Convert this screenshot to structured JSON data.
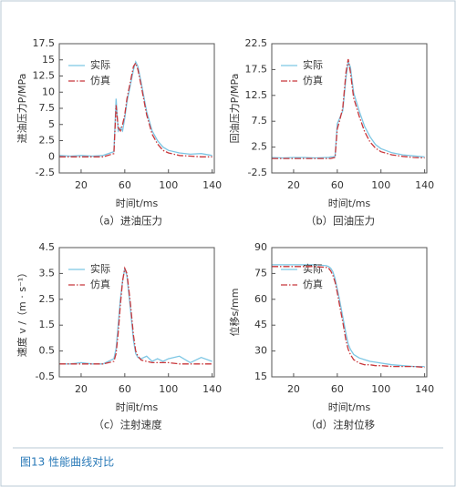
{
  "chart_data": [
    {
      "type": "line",
      "caption": "（a）进油压力",
      "x_label": "时间t/ms",
      "y_label": "进油压力P/MPa",
      "x": [
        0,
        10,
        20,
        30,
        40,
        50,
        52,
        54,
        56,
        58,
        60,
        62,
        65,
        68,
        70,
        72,
        75,
        80,
        85,
        90,
        95,
        100,
        110,
        120,
        130,
        140
      ],
      "xlim": [
        0,
        142
      ],
      "xticks": [
        20,
        60,
        100,
        140
      ],
      "ylim": [
        -2.5,
        17.5
      ],
      "yticks": [
        -2.5,
        0,
        2.5,
        5,
        7.5,
        10,
        12.5,
        15,
        17.5
      ],
      "series": [
        {
          "name": "实际",
          "color": "#7cc6e4",
          "dash": "solid",
          "values": [
            0.2,
            0.1,
            0.2,
            0.1,
            0.2,
            0.8,
            9,
            4,
            4.5,
            4,
            6,
            8.5,
            11,
            13.5,
            14.7,
            14,
            11.5,
            7,
            4,
            2.5,
            1.5,
            1,
            0.6,
            0.4,
            0.5,
            0.2
          ]
        },
        {
          "name": "仿真",
          "color": "#c8363a",
          "dash": "dash-dot",
          "values": [
            0,
            0,
            0,
            0,
            0,
            0.5,
            8,
            4.5,
            4,
            5,
            6.5,
            9,
            11.5,
            14,
            14.5,
            13.5,
            11,
            6.5,
            3.5,
            2,
            1,
            0.6,
            0.2,
            0.1,
            0,
            0
          ]
        }
      ]
    },
    {
      "type": "line",
      "caption": "（b）回油压力",
      "x_label": "时间t/ms",
      "y_label": "回油压力P/MPa",
      "x": [
        0,
        10,
        20,
        30,
        40,
        50,
        52,
        54,
        56,
        58,
        60,
        62,
        65,
        68,
        70,
        72,
        75,
        80,
        85,
        90,
        95,
        100,
        110,
        120,
        130,
        140
      ],
      "xlim": [
        0,
        142
      ],
      "xticks": [
        20,
        60,
        100,
        140
      ],
      "ylim": [
        -2.5,
        22.5
      ],
      "yticks": [
        -2.5,
        2.5,
        7.5,
        12.5,
        17.5,
        22.5
      ],
      "series": [
        {
          "name": "实际",
          "color": "#7cc6e4",
          "dash": "solid",
          "values": [
            0.5,
            0.4,
            0.5,
            0.5,
            0.4,
            0.5,
            0.5,
            0.6,
            0.6,
            0.7,
            7,
            8,
            9.5,
            16,
            19,
            18,
            13,
            9.5,
            6.5,
            4.5,
            3,
            2.2,
            1.4,
            1,
            0.8,
            0.6
          ]
        },
        {
          "name": "仿真",
          "color": "#c8363a",
          "dash": "dash-dot",
          "values": [
            0.3,
            0.3,
            0.3,
            0.3,
            0.3,
            0.3,
            0.3,
            0.3,
            0.4,
            0.5,
            6,
            7.5,
            10,
            17,
            19.5,
            17,
            12,
            8.5,
            5.5,
            3.5,
            2.3,
            1.6,
            1,
            0.7,
            0.5,
            0.4
          ]
        }
      ]
    },
    {
      "type": "line",
      "caption": "（c）注射速度",
      "x_label": "时间t/ms",
      "y_label": "速度 v /（m · s⁻¹）",
      "x": [
        0,
        10,
        20,
        30,
        40,
        50,
        52,
        54,
        56,
        58,
        60,
        62,
        65,
        68,
        70,
        72,
        75,
        80,
        85,
        90,
        95,
        100,
        110,
        120,
        130,
        140
      ],
      "xlim": [
        0,
        142
      ],
      "xticks": [
        20,
        60,
        100,
        140
      ],
      "ylim": [
        -0.5,
        4.5
      ],
      "yticks": [
        -0.5,
        0.5,
        1.5,
        2.5,
        3.5,
        4.5
      ],
      "series": [
        {
          "name": "实际",
          "color": "#7cc6e4",
          "dash": "solid",
          "values": [
            0,
            0,
            0.05,
            0,
            0,
            0.2,
            0.6,
            1.5,
            2.5,
            3.2,
            3.7,
            3.4,
            2.2,
            0.9,
            0.4,
            0.25,
            0.2,
            0.3,
            0.1,
            0.2,
            0.1,
            0.2,
            0.3,
            0.05,
            0.25,
            0.1
          ]
        },
        {
          "name": "仿真",
          "color": "#c8363a",
          "dash": "dash-dot",
          "values": [
            0,
            0,
            0,
            0,
            0,
            0.1,
            0.4,
            1.2,
            2.3,
            3.2,
            3.7,
            3.5,
            2.4,
            1.1,
            0.5,
            0.3,
            0.15,
            0.1,
            0.05,
            0.05,
            0.05,
            0.05,
            0,
            0,
            0,
            0
          ]
        }
      ]
    },
    {
      "type": "line",
      "caption": "（d）注射位移",
      "x_label": "时间t/ms",
      "y_label": "位移s/mm",
      "x": [
        0,
        10,
        20,
        30,
        40,
        50,
        52,
        54,
        56,
        58,
        60,
        62,
        65,
        68,
        70,
        72,
        75,
        80,
        85,
        90,
        95,
        100,
        110,
        120,
        130,
        140
      ],
      "xlim": [
        0,
        142
      ],
      "xticks": [
        20,
        60,
        100,
        140
      ],
      "ylim": [
        15,
        90
      ],
      "yticks": [
        15,
        30,
        45,
        60,
        75,
        90
      ],
      "series": [
        {
          "name": "实际",
          "color": "#7cc6e4",
          "dash": "solid",
          "values": [
            80,
            80,
            80,
            80,
            80,
            79.5,
            79,
            78,
            76,
            72,
            66,
            60,
            50,
            40,
            34,
            31,
            28,
            26,
            25,
            24,
            23.5,
            23,
            22,
            21.5,
            21,
            21
          ]
        },
        {
          "name": "仿真",
          "color": "#c8363a",
          "dash": "dash-dot",
          "values": [
            79,
            79,
            79,
            79,
            79,
            78.5,
            78,
            76.5,
            74,
            70,
            64,
            57,
            47,
            36,
            31,
            28,
            25,
            23,
            22,
            22,
            21.5,
            21.5,
            21,
            21,
            21,
            20.5
          ]
        }
      ]
    }
  ],
  "figure_caption": "图13 性能曲线对比"
}
